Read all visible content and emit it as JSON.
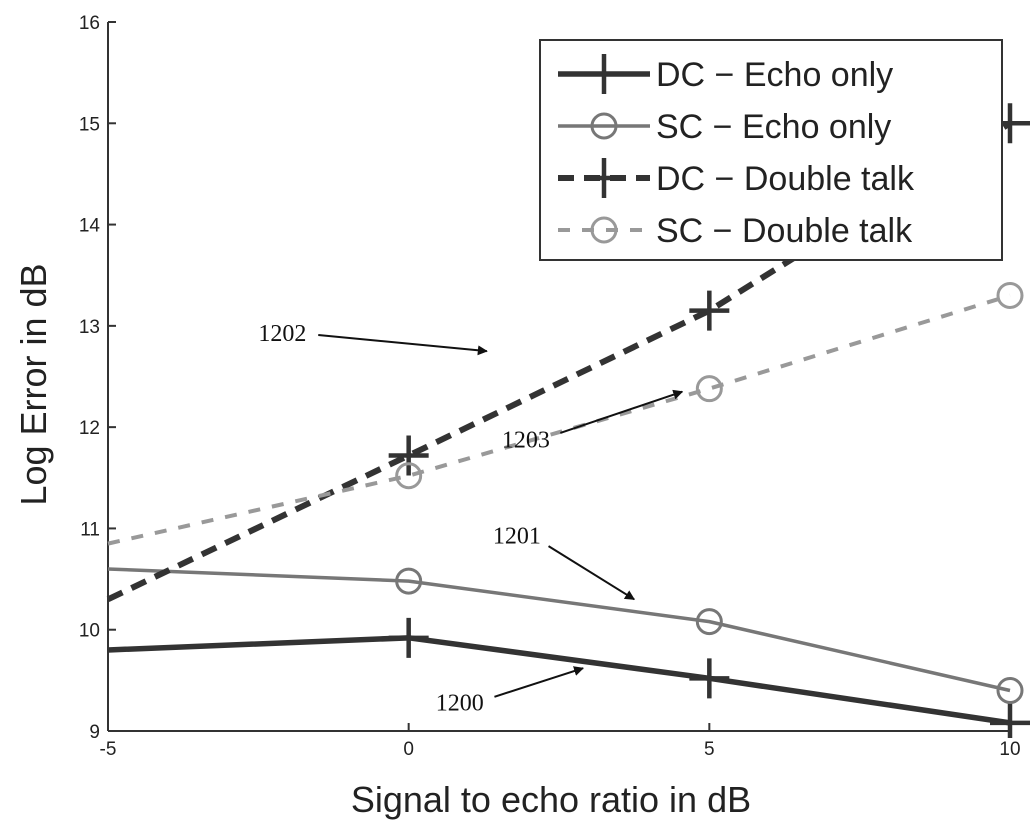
{
  "chart_data": {
    "type": "line",
    "xlabel": "Signal to echo ratio in dB",
    "ylabel": "Log Error in dB",
    "xlim": [
      -5,
      10
    ],
    "ylim": [
      9,
      16
    ],
    "x_ticks": [
      "-5",
      "0",
      "5",
      "10"
    ],
    "y_ticks": [
      "9",
      "10",
      "11",
      "12",
      "13",
      "14",
      "15",
      "16"
    ],
    "grid": false,
    "legend_position": "top-right",
    "series": [
      {
        "name": "DC − Echo only",
        "x": [
          -5,
          0,
          5,
          10
        ],
        "y": [
          9.8,
          9.92,
          9.52,
          9.08
        ],
        "color": "#333333",
        "line_style": "solid",
        "marker": "plus"
      },
      {
        "name": "SC − Echo only",
        "x": [
          -5,
          0,
          5,
          10
        ],
        "y": [
          10.6,
          10.48,
          10.08,
          9.4
        ],
        "color": "#777777",
        "line_style": "solid",
        "marker": "circle"
      },
      {
        "name": "DC − Double talk",
        "x": [
          -5,
          0,
          5,
          10
        ],
        "y": [
          10.3,
          11.72,
          13.15,
          15.0
        ],
        "color": "#333333",
        "line_style": "dashed",
        "marker": "plus"
      },
      {
        "name": "SC − Double talk",
        "x": [
          -5,
          0,
          5,
          10
        ],
        "y": [
          10.85,
          11.52,
          12.38,
          13.3
        ],
        "color": "#999999",
        "line_style": "dashed",
        "marker": "circle"
      }
    ],
    "annotations": [
      {
        "text": "1200",
        "x": 0.85,
        "y": 9.2,
        "arrow_to": [
          2.9,
          9.62
        ]
      },
      {
        "text": "1201",
        "x": 1.8,
        "y": 10.85,
        "arrow_to": [
          3.75,
          10.3
        ]
      },
      {
        "text": "1202",
        "x": -2.1,
        "y": 12.85,
        "arrow_to": [
          1.3,
          12.75
        ]
      },
      {
        "text": "1203",
        "x": 1.95,
        "y": 11.8,
        "arrow_to": [
          4.55,
          12.35
        ]
      }
    ]
  }
}
